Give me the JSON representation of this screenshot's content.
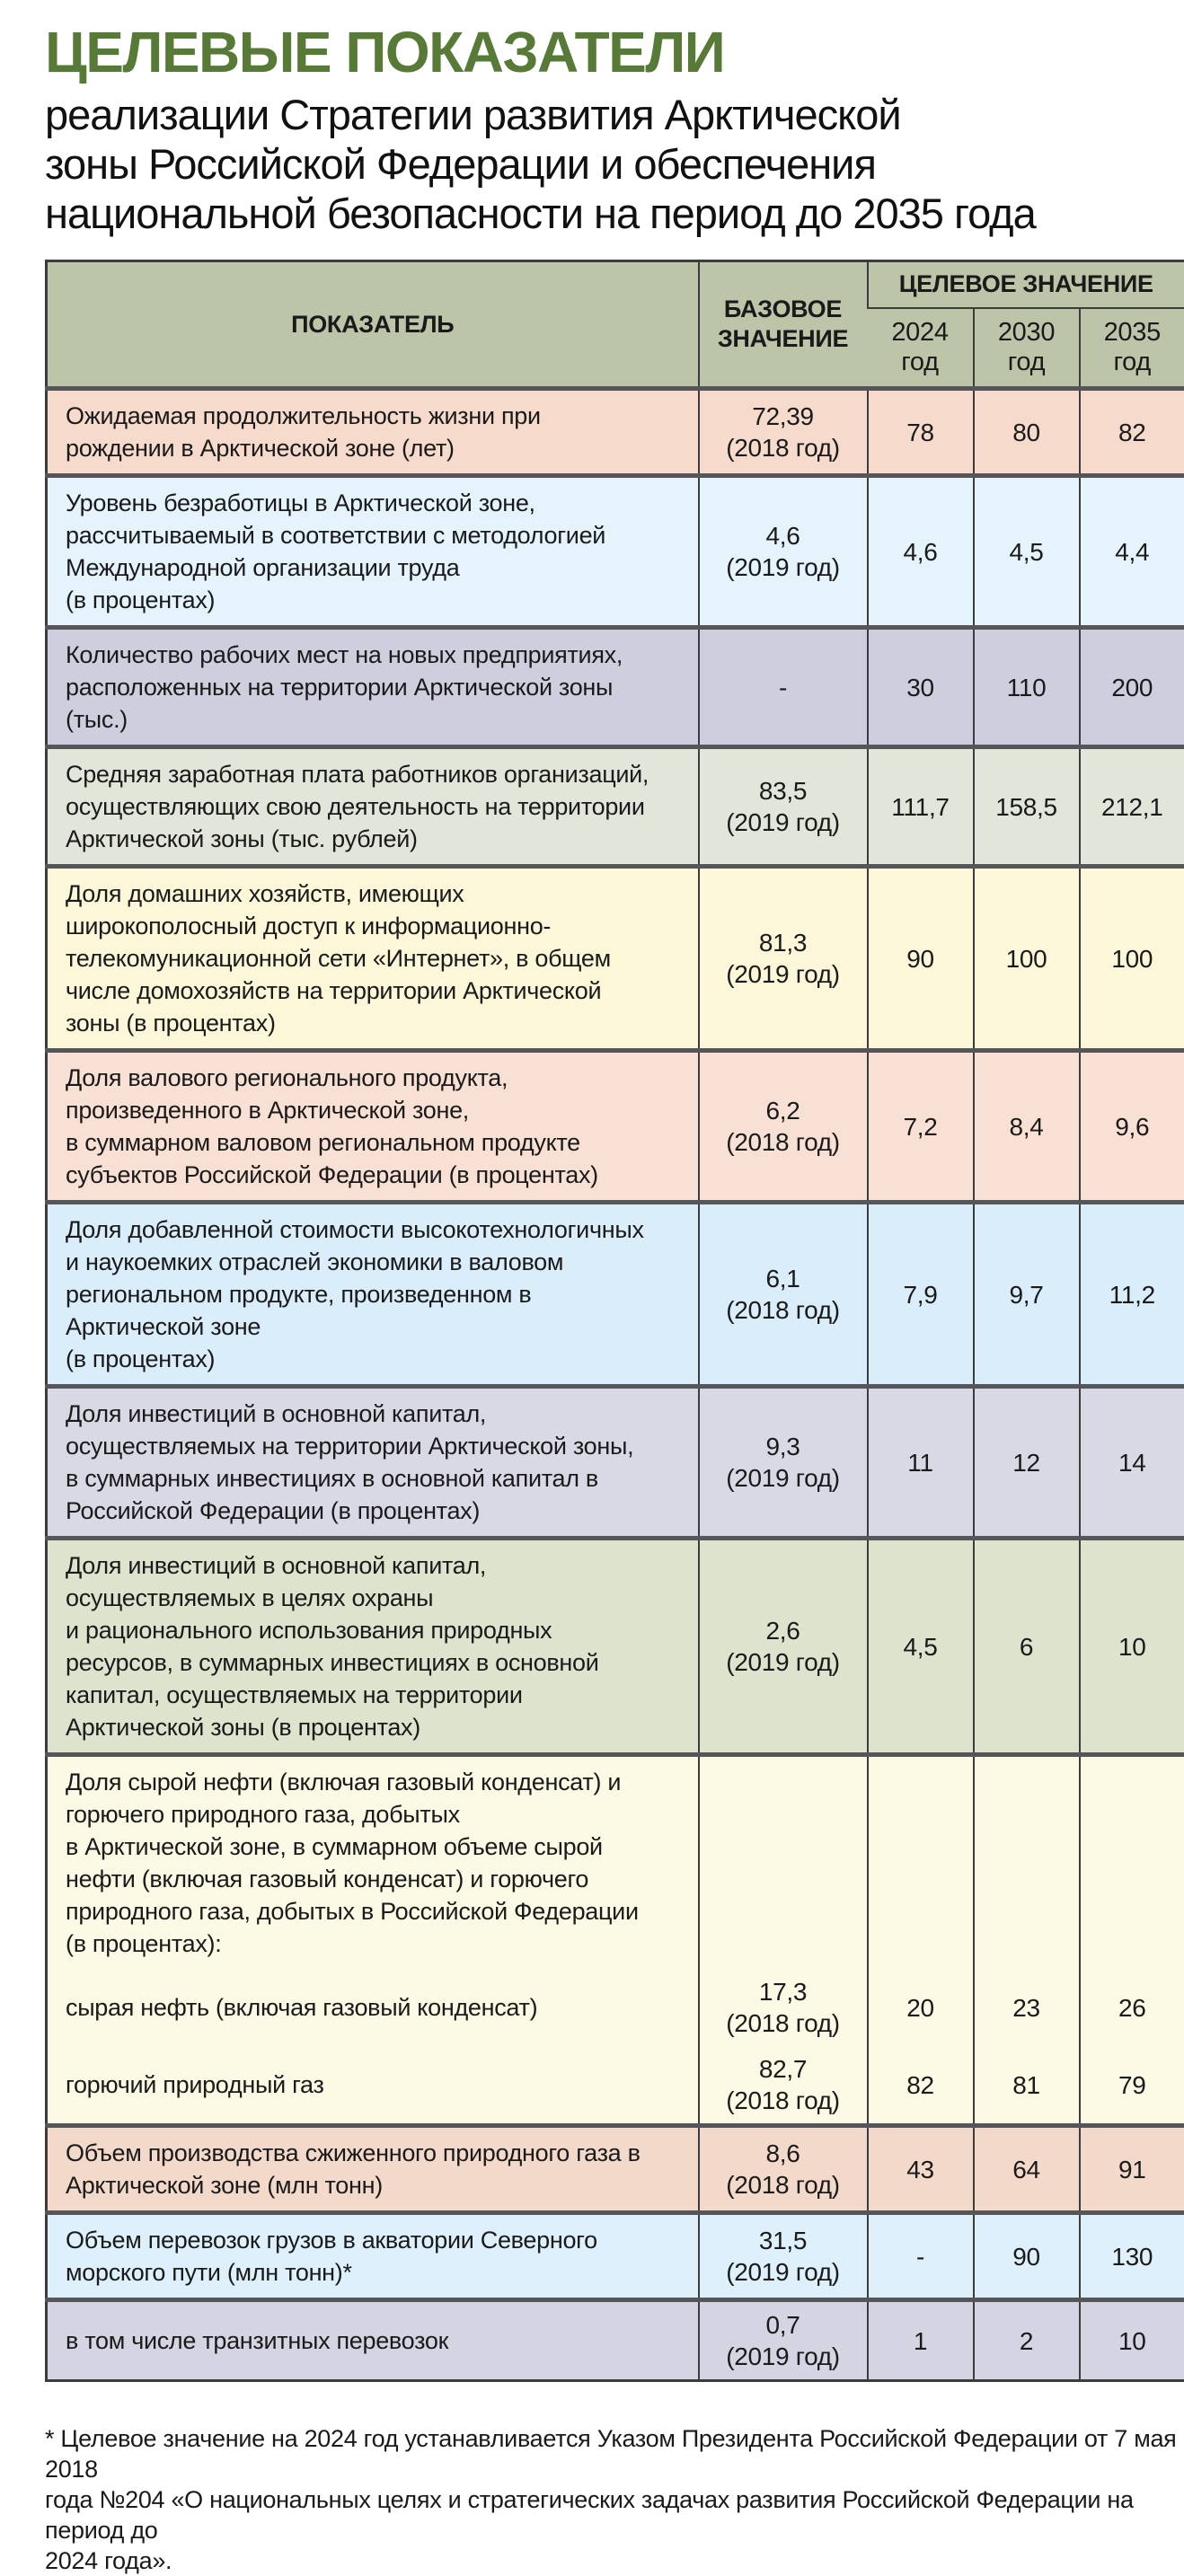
{
  "page": {
    "title": "ЦЕЛЕВЫЕ ПОКАЗАТЕЛИ",
    "subtitle": "реализации Стратегии развития Арктической\nзоны Российской Федерации и обеспечения\nнациональной безопасности на период до 2035 года",
    "footnote": "* Целевое значение на 2024 год устанавливается Указом Президента Российской Федерации от 7 мая 2018\nгода №204 «О национальных целях и стратегических задачах развития Российской Федерации на период до\n2024 года»."
  },
  "colors": {
    "title_green": "#587a37",
    "header_bg": "#bcc5a8",
    "border_dark": "#3c3c3e",
    "row_separator": "#55555a"
  },
  "table": {
    "headers": {
      "indicator": "ПОКАЗАТЕЛЬ",
      "base": "БАЗОВОЕ\nЗНАЧЕНИЕ",
      "target_group": "ЦЕЛЕВОЕ ЗНАЧЕНИЕ",
      "years": [
        "2024\nгод",
        "2030\nгод",
        "2035\nгод"
      ]
    },
    "rows": [
      {
        "indicator": "Ожидаемая продолжительность жизни при\nрождении в Арктической зоне (лет)",
        "base": "72,39\n(2018 год)",
        "t2024": "78",
        "t2030": "80",
        "t2035": "82",
        "bg": "#f6dacc",
        "sub": false
      },
      {
        "indicator": "Уровень безработицы в Арктической зоне,\nрассчитываемый в соответствии с методологией\nМеждународной организации труда\n(в процентах)",
        "base": "4,6\n(2019 год)",
        "t2024": "4,6",
        "t2030": "4,5",
        "t2035": "4,4",
        "bg": "#e4f3fc",
        "sub": false
      },
      {
        "indicator": "Количество рабочих мест на новых предприятиях,\nрасположенных на территории Арктической зоны\n(тыс.)",
        "base": "-",
        "t2024": "30",
        "t2030": "110",
        "t2035": "200",
        "bg": "#cecede",
        "sub": false
      },
      {
        "indicator": "Средняя заработная плата работников организаций,\nосуществляющих свою деятельность на территории\nАрктической зоны (тыс. рублей)",
        "base": "83,5\n(2019 год)",
        "t2024": "111,7",
        "t2030": "158,5",
        "t2035": "212,1",
        "bg": "#e2e5da",
        "sub": false
      },
      {
        "indicator": "Доля домашних хозяйств, имеющих\nширокополосный доступ к информационно-\nтелекомуникационной сети «Интернет», в общем\nчисле домохозяйств на территории Арктической\nзоны (в процентах)",
        "base": "81,3\n(2019 год)",
        "t2024": "90",
        "t2030": "100",
        "t2035": "100",
        "bg": "#fbf7d8",
        "sub": false
      },
      {
        "indicator": "Доля валового регионального продукта,\nпроизведенного в Арктической зоне,\nв суммарном валовом региональном продукте\nсубъектов Российской Федерации (в процентах)",
        "base": "6,2\n(2018 год)",
        "t2024": "7,2",
        "t2030": "8,4",
        "t2035": "9,6",
        "bg": "#f8e0d4",
        "sub": false
      },
      {
        "indicator": "Доля добавленной стоимости высокотехнологичных\nи наукоемких отраслей экономики в валовом\nрегиональном продукте, произведенном в\nАрктической зоне\n(в процентах)",
        "base": "6,1\n(2018 год)",
        "t2024": "7,9",
        "t2030": "9,7",
        "t2035": "11,2",
        "bg": "#d9edfb",
        "sub": false
      },
      {
        "indicator": "Доля инвестиций в основной капитал,\nосуществляемых на территории Арктической зоны,\nв суммарных инвестициях в основной капитал в\nРоссийской Федерации (в процентах)",
        "base": "9,3\n(2019 год)",
        "t2024": "11",
        "t2030": "12",
        "t2035": "14",
        "bg": "#d9d9e6",
        "sub": false
      },
      {
        "indicator": "Доля инвестиций в основной капитал,\nосуществляемых в целях охраны\nи рационального использования природных\nресурсов, в суммарных инвестициях в основной\nкапитал, осуществляемых на территории\nАрктической зоны (в процентах)",
        "base": "2,6\n(2019 год)",
        "t2024": "4,5",
        "t2030": "6",
        "t2035": "10",
        "bg": "#dde3cd",
        "sub": false
      },
      {
        "indicator": "Доля сырой нефти (включая газовый конденсат) и\nгорючего природного газа, добытых\nв Арктической зоне, в суммарном объеме сырой\nнефти (включая газовый конденсат) и горючего\nприродного газа, добытых в Российской Федерации\n(в процентах):",
        "base": "",
        "t2024": "",
        "t2030": "",
        "t2035": "",
        "bg": "#fcf9e4",
        "sub": false
      },
      {
        "indicator": "сырая нефть (включая газовый конденсат)",
        "base": "17,3\n(2018 год)",
        "t2024": "20",
        "t2030": "23",
        "t2035": "26",
        "bg": "#fcf9e4",
        "sub": true
      },
      {
        "indicator": "горючий природный газ",
        "base": "82,7\n(2018 год)",
        "t2024": "82",
        "t2030": "81",
        "t2035": "79",
        "bg": "#fcf9e4",
        "sub": true
      },
      {
        "indicator": "Объем производства сжиженного природного газа в\nАрктической зоне (млн тонн)",
        "base": "8,6\n(2018 год)",
        "t2024": "43",
        "t2030": "64",
        "t2035": "91",
        "bg": "#f3d9ca",
        "sub": false
      },
      {
        "indicator": "Объем перевозок грузов в акватории Северного\nморского пути (млн тонн)*",
        "base": "31,5\n(2019 год)",
        "t2024": "-",
        "t2030": "90",
        "t2035": "130",
        "bg": "#ddf0fc",
        "sub": false
      },
      {
        "indicator": "в том числе транзитных перевозок",
        "base": "0,7\n(2019 год)",
        "t2024": "1",
        "t2030": "2",
        "t2035": "10",
        "bg": "#d4d4e2",
        "sub": false
      }
    ]
  }
}
